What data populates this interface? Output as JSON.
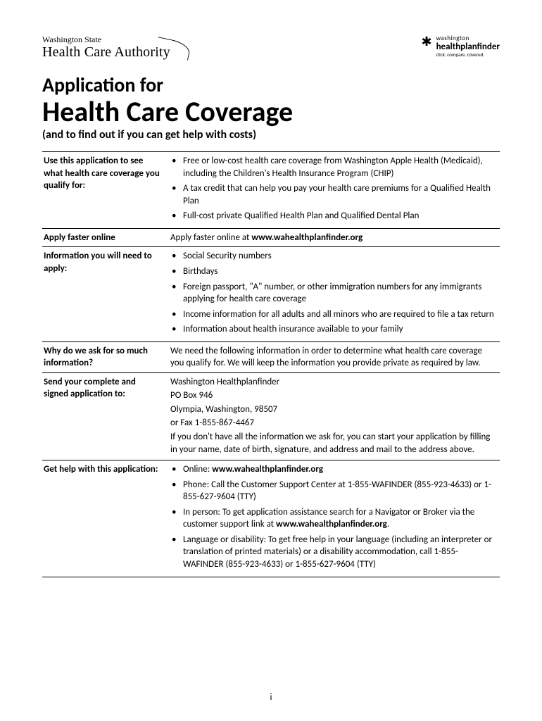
{
  "logoLeft": {
    "line1": "Washington State",
    "line2": "Health Care Authority"
  },
  "logoRight": {
    "line1": "washington",
    "line2": "healthplanfinder",
    "tag": "click. compare. covered."
  },
  "title1": "Application for",
  "title2": "Health Care Coverage",
  "subtitle": "(and to find out if you can get help with costs)",
  "rows": {
    "r1": {
      "label": "Use this application to see what health care coverage you qualify for:",
      "items": [
        "Free or low-cost health care coverage from Washington Apple Health (Medicaid), including the Children's Health Insurance Program (CHIP)",
        "A tax credit that can help you pay your health care premiums for a Qualified Health Plan",
        "Full-cost private Qualified Health Plan and Qualified Dental Plan"
      ]
    },
    "r2": {
      "label": "Apply faster online",
      "text_a": "Apply faster online at ",
      "text_b": "www.wahealthplanfinder.org"
    },
    "r3": {
      "label": "Information you will need to apply:",
      "items": [
        "Social Security numbers",
        "Birthdays",
        "Foreign passport, \"A\" number, or other immigration numbers for any immigrants applying for health care coverage",
        "Income information for all adults and all minors who are required to file a tax return",
        "Information about health insurance available to your family"
      ]
    },
    "r4": {
      "label": "Why do we ask for so much information?",
      "text": "We need the following information in order to determine what health care coverage you qualify for. We will keep the information you provide private as required by law."
    },
    "r5": {
      "label": "Send your complete and signed application to:",
      "lines": [
        "Washington Healthplanfinder",
        "PO Box 946",
        "Olympia, Washington, 98507",
        "or Fax 1-855-867-4467",
        "If you don't have all the information we ask for, you can start your application by filling in your name, date of birth, signature, and address and mail to the address above."
      ]
    },
    "r6": {
      "label": "Get help with this application:",
      "i0a": "Online: ",
      "i0b": "www.wahealthplanfinder.org",
      "i1": "Phone: Call the Customer Support Center at 1-855-WAFINDER (855-923-4633) or 1-855-627-9604 (TTY)",
      "i2a": "In person: To get application assistance search for a Navigator or Broker via the customer support link at ",
      "i2b": "www.wahealthplanfinder.org",
      "i2c": ".",
      "i3": "Language or disability: To get free help in your language (including an interpreter or translation of printed materials) or a disability accommodation, call 1-855-WAFINDER (855-923-4633) or 1-855-627-9604 (TTY)"
    }
  },
  "pageNumber": "i"
}
